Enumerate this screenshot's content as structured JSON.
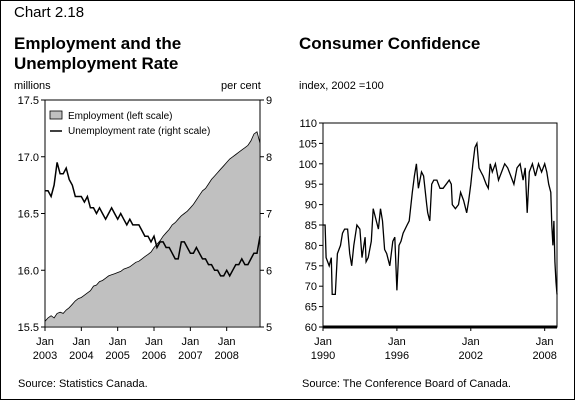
{
  "header": {
    "chart_number": "Chart 2.18",
    "left_title_line1": "Employment and the",
    "left_title_line2": "Unemployment Rate",
    "right_title": "Consumer Confidence"
  },
  "sources": {
    "left": "Source: Statistics Canada.",
    "right": "Source: The Conference Board of Canada."
  },
  "chart_data": [
    {
      "type": "area",
      "y_left_label": "millions",
      "y_right_label": "per cent",
      "ylim_left": [
        15.5,
        17.5
      ],
      "ylim_right": [
        5,
        9
      ],
      "y_left_ticks": [
        "15.5",
        "16.0",
        "16.5",
        "17.0",
        "17.5"
      ],
      "y_right_ticks": [
        "5",
        "6",
        "7",
        "8",
        "9"
      ],
      "x_ticks": [
        {
          "month": "Jan",
          "year": "2003"
        },
        {
          "month": "Jan",
          "year": "2004"
        },
        {
          "month": "Jan",
          "year": "2005"
        },
        {
          "month": "Jan",
          "year": "2006"
        },
        {
          "month": "Jan",
          "year": "2007"
        },
        {
          "month": "Jan",
          "year": "2008"
        }
      ],
      "x_range": [
        "2003-01",
        "2008-12"
      ],
      "legend": [
        "Employment (left scale)",
        "Unemployment rate (right scale)"
      ],
      "series": [
        {
          "name": "Employment (left scale)",
          "axis": "left",
          "style": "area",
          "points": [
            [
              "2003-01",
              15.55
            ],
            [
              "2003-02",
              15.58
            ],
            [
              "2003-03",
              15.6
            ],
            [
              "2003-04",
              15.58
            ],
            [
              "2003-05",
              15.62
            ],
            [
              "2003-06",
              15.63
            ],
            [
              "2003-07",
              15.62
            ],
            [
              "2003-08",
              15.65
            ],
            [
              "2003-09",
              15.67
            ],
            [
              "2003-10",
              15.7
            ],
            [
              "2003-11",
              15.73
            ],
            [
              "2003-12",
              15.75
            ],
            [
              "2004-01",
              15.76
            ],
            [
              "2004-02",
              15.78
            ],
            [
              "2004-03",
              15.8
            ],
            [
              "2004-04",
              15.82
            ],
            [
              "2004-05",
              15.86
            ],
            [
              "2004-06",
              15.87
            ],
            [
              "2004-07",
              15.9
            ],
            [
              "2004-08",
              15.91
            ],
            [
              "2004-09",
              15.93
            ],
            [
              "2004-10",
              15.95
            ],
            [
              "2004-11",
              15.96
            ],
            [
              "2004-12",
              15.97
            ],
            [
              "2005-01",
              15.98
            ],
            [
              "2005-02",
              15.99
            ],
            [
              "2005-03",
              16.01
            ],
            [
              "2005-04",
              16.02
            ],
            [
              "2005-05",
              16.03
            ],
            [
              "2005-06",
              16.05
            ],
            [
              "2005-07",
              16.07
            ],
            [
              "2005-08",
              16.08
            ],
            [
              "2005-09",
              16.1
            ],
            [
              "2005-10",
              16.12
            ],
            [
              "2005-11",
              16.14
            ],
            [
              "2005-12",
              16.16
            ],
            [
              "2006-01",
              16.2
            ],
            [
              "2006-02",
              16.23
            ],
            [
              "2006-03",
              16.26
            ],
            [
              "2006-04",
              16.3
            ],
            [
              "2006-05",
              16.33
            ],
            [
              "2006-06",
              16.36
            ],
            [
              "2006-07",
              16.4
            ],
            [
              "2006-08",
              16.42
            ],
            [
              "2006-09",
              16.45
            ],
            [
              "2006-10",
              16.48
            ],
            [
              "2006-11",
              16.5
            ],
            [
              "2006-12",
              16.52
            ],
            [
              "2007-01",
              16.55
            ],
            [
              "2007-02",
              16.58
            ],
            [
              "2007-03",
              16.62
            ],
            [
              "2007-04",
              16.66
            ],
            [
              "2007-05",
              16.7
            ],
            [
              "2007-06",
              16.72
            ],
            [
              "2007-07",
              16.76
            ],
            [
              "2007-08",
              16.8
            ],
            [
              "2007-09",
              16.83
            ],
            [
              "2007-10",
              16.86
            ],
            [
              "2007-11",
              16.89
            ],
            [
              "2007-12",
              16.92
            ],
            [
              "2008-01",
              16.95
            ],
            [
              "2008-02",
              16.98
            ],
            [
              "2008-03",
              17.0
            ],
            [
              "2008-04",
              17.02
            ],
            [
              "2008-05",
              17.04
            ],
            [
              "2008-06",
              17.06
            ],
            [
              "2008-07",
              17.08
            ],
            [
              "2008-08",
              17.1
            ],
            [
              "2008-09",
              17.14
            ],
            [
              "2008-10",
              17.2
            ],
            [
              "2008-11",
              17.22
            ],
            [
              "2008-12",
              17.12
            ]
          ]
        },
        {
          "name": "Unemployment rate (right scale)",
          "axis": "right",
          "style": "line",
          "points": [
            [
              "2003-01",
              7.4
            ],
            [
              "2003-02",
              7.4
            ],
            [
              "2003-03",
              7.3
            ],
            [
              "2003-04",
              7.5
            ],
            [
              "2003-05",
              7.9
            ],
            [
              "2003-06",
              7.7
            ],
            [
              "2003-07",
              7.7
            ],
            [
              "2003-08",
              7.8
            ],
            [
              "2003-09",
              7.6
            ],
            [
              "2003-10",
              7.5
            ],
            [
              "2003-11",
              7.3
            ],
            [
              "2003-12",
              7.3
            ],
            [
              "2004-01",
              7.3
            ],
            [
              "2004-02",
              7.2
            ],
            [
              "2004-03",
              7.3
            ],
            [
              "2004-04",
              7.1
            ],
            [
              "2004-05",
              7.1
            ],
            [
              "2004-06",
              7.0
            ],
            [
              "2004-07",
              7.1
            ],
            [
              "2004-08",
              7.0
            ],
            [
              "2004-09",
              6.9
            ],
            [
              "2004-10",
              7.0
            ],
            [
              "2004-11",
              7.1
            ],
            [
              "2004-12",
              7.0
            ],
            [
              "2005-01",
              6.9
            ],
            [
              "2005-02",
              7.0
            ],
            [
              "2005-03",
              6.9
            ],
            [
              "2005-04",
              6.8
            ],
            [
              "2005-05",
              6.9
            ],
            [
              "2005-06",
              6.8
            ],
            [
              "2005-07",
              6.8
            ],
            [
              "2005-08",
              6.8
            ],
            [
              "2005-09",
              6.7
            ],
            [
              "2005-10",
              6.6
            ],
            [
              "2005-11",
              6.6
            ],
            [
              "2005-12",
              6.5
            ],
            [
              "2006-01",
              6.6
            ],
            [
              "2006-02",
              6.4
            ],
            [
              "2006-03",
              6.5
            ],
            [
              "2006-04",
              6.5
            ],
            [
              "2006-05",
              6.4
            ],
            [
              "2006-06",
              6.4
            ],
            [
              "2006-07",
              6.3
            ],
            [
              "2006-08",
              6.2
            ],
            [
              "2006-09",
              6.2
            ],
            [
              "2006-10",
              6.5
            ],
            [
              "2006-11",
              6.5
            ],
            [
              "2006-12",
              6.4
            ],
            [
              "2007-01",
              6.3
            ],
            [
              "2007-02",
              6.3
            ],
            [
              "2007-03",
              6.4
            ],
            [
              "2007-04",
              6.3
            ],
            [
              "2007-05",
              6.2
            ],
            [
              "2007-06",
              6.2
            ],
            [
              "2007-07",
              6.1
            ],
            [
              "2007-08",
              6.1
            ],
            [
              "2007-09",
              6.0
            ],
            [
              "2007-10",
              6.0
            ],
            [
              "2007-11",
              5.9
            ],
            [
              "2007-12",
              5.9
            ],
            [
              "2008-01",
              6.0
            ],
            [
              "2008-02",
              5.9
            ],
            [
              "2008-03",
              6.0
            ],
            [
              "2008-04",
              6.1
            ],
            [
              "2008-05",
              6.1
            ],
            [
              "2008-06",
              6.2
            ],
            [
              "2008-07",
              6.1
            ],
            [
              "2008-08",
              6.1
            ],
            [
              "2008-09",
              6.2
            ],
            [
              "2008-10",
              6.3
            ],
            [
              "2008-11",
              6.3
            ],
            [
              "2008-12",
              6.6
            ]
          ]
        }
      ],
      "colors": {
        "area_fill": "#c0c0c0",
        "line": "#000000"
      }
    },
    {
      "type": "line",
      "y_label": "index, 2002 =100",
      "ylim": [
        60,
        110
      ],
      "y_ticks": [
        "60",
        "65",
        "70",
        "75",
        "80",
        "85",
        "90",
        "95",
        "100",
        "105",
        "110"
      ],
      "x_ticks": [
        {
          "month": "Jan",
          "year": "1990"
        },
        {
          "month": "Jan",
          "year": "1996"
        },
        {
          "month": "Jan",
          "year": "2002"
        },
        {
          "month": "Jan",
          "year": "2008"
        }
      ],
      "x_range": [
        1990.0,
        2009.0
      ],
      "series": [
        {
          "points": [
            [
              1990.0,
              85
            ],
            [
              1990.17,
              85
            ],
            [
              1990.25,
              77
            ],
            [
              1990.5,
              75
            ],
            [
              1990.67,
              77
            ],
            [
              1990.75,
              68
            ],
            [
              1991.0,
              68
            ],
            [
              1991.17,
              78
            ],
            [
              1991.42,
              80
            ],
            [
              1991.58,
              83
            ],
            [
              1991.75,
              84
            ],
            [
              1992.0,
              84
            ],
            [
              1992.17,
              78
            ],
            [
              1992.33,
              75
            ],
            [
              1992.5,
              80
            ],
            [
              1992.75,
              85
            ],
            [
              1993.0,
              84
            ],
            [
              1993.17,
              77
            ],
            [
              1993.42,
              82
            ],
            [
              1993.5,
              76
            ],
            [
              1993.67,
              77
            ],
            [
              1993.92,
              81
            ],
            [
              1994.08,
              89
            ],
            [
              1994.33,
              86
            ],
            [
              1994.5,
              84
            ],
            [
              1994.67,
              89
            ],
            [
              1994.83,
              86
            ],
            [
              1995.0,
              79
            ],
            [
              1995.17,
              78
            ],
            [
              1995.42,
              75
            ],
            [
              1995.67,
              81
            ],
            [
              1995.83,
              82
            ],
            [
              1996.0,
              69
            ],
            [
              1996.17,
              80
            ],
            [
              1996.33,
              81
            ],
            [
              1996.5,
              83
            ],
            [
              1996.83,
              85
            ],
            [
              1997.0,
              86
            ],
            [
              1997.25,
              93
            ],
            [
              1997.42,
              97
            ],
            [
              1997.58,
              100
            ],
            [
              1997.75,
              94
            ],
            [
              1998.0,
              98
            ],
            [
              1998.17,
              97
            ],
            [
              1998.42,
              90
            ],
            [
              1998.5,
              88
            ],
            [
              1998.67,
              86
            ],
            [
              1998.83,
              95
            ],
            [
              1999.0,
              96
            ],
            [
              1999.25,
              96
            ],
            [
              1999.5,
              94
            ],
            [
              1999.75,
              94
            ],
            [
              2000.0,
              95
            ],
            [
              2000.25,
              96
            ],
            [
              2000.42,
              95
            ],
            [
              2000.5,
              90
            ],
            [
              2000.75,
              89
            ],
            [
              2001.0,
              90
            ],
            [
              2001.17,
              93
            ],
            [
              2001.42,
              91
            ],
            [
              2001.67,
              88
            ],
            [
              2001.83,
              91
            ],
            [
              2002.0,
              95
            ],
            [
              2002.17,
              100
            ],
            [
              2002.33,
              104
            ],
            [
              2002.5,
              105
            ],
            [
              2002.67,
              99
            ],
            [
              2002.83,
              98
            ],
            [
              2003.0,
              97
            ],
            [
              2003.25,
              95
            ],
            [
              2003.42,
              94
            ],
            [
              2003.58,
              100
            ],
            [
              2003.75,
              98
            ],
            [
              2004.0,
              100
            ],
            [
              2004.25,
              96
            ],
            [
              2004.5,
              98
            ],
            [
              2004.75,
              100
            ],
            [
              2005.0,
              99
            ],
            [
              2005.25,
              97
            ],
            [
              2005.5,
              95
            ],
            [
              2005.75,
              99
            ],
            [
              2006.0,
              100
            ],
            [
              2006.25,
              96
            ],
            [
              2006.42,
              99
            ],
            [
              2006.58,
              88
            ],
            [
              2006.75,
              98
            ],
            [
              2007.0,
              100
            ],
            [
              2007.25,
              97
            ],
            [
              2007.5,
              100
            ],
            [
              2007.75,
              98
            ],
            [
              2008.0,
              100
            ],
            [
              2008.17,
              98
            ],
            [
              2008.33,
              95
            ],
            [
              2008.5,
              93
            ],
            [
              2008.58,
              85
            ],
            [
              2008.67,
              80
            ],
            [
              2008.75,
              86
            ],
            [
              2008.83,
              76
            ],
            [
              2008.92,
              71
            ],
            [
              2009.0,
              68
            ]
          ]
        }
      ],
      "colors": {
        "line": "#000000"
      }
    }
  ]
}
